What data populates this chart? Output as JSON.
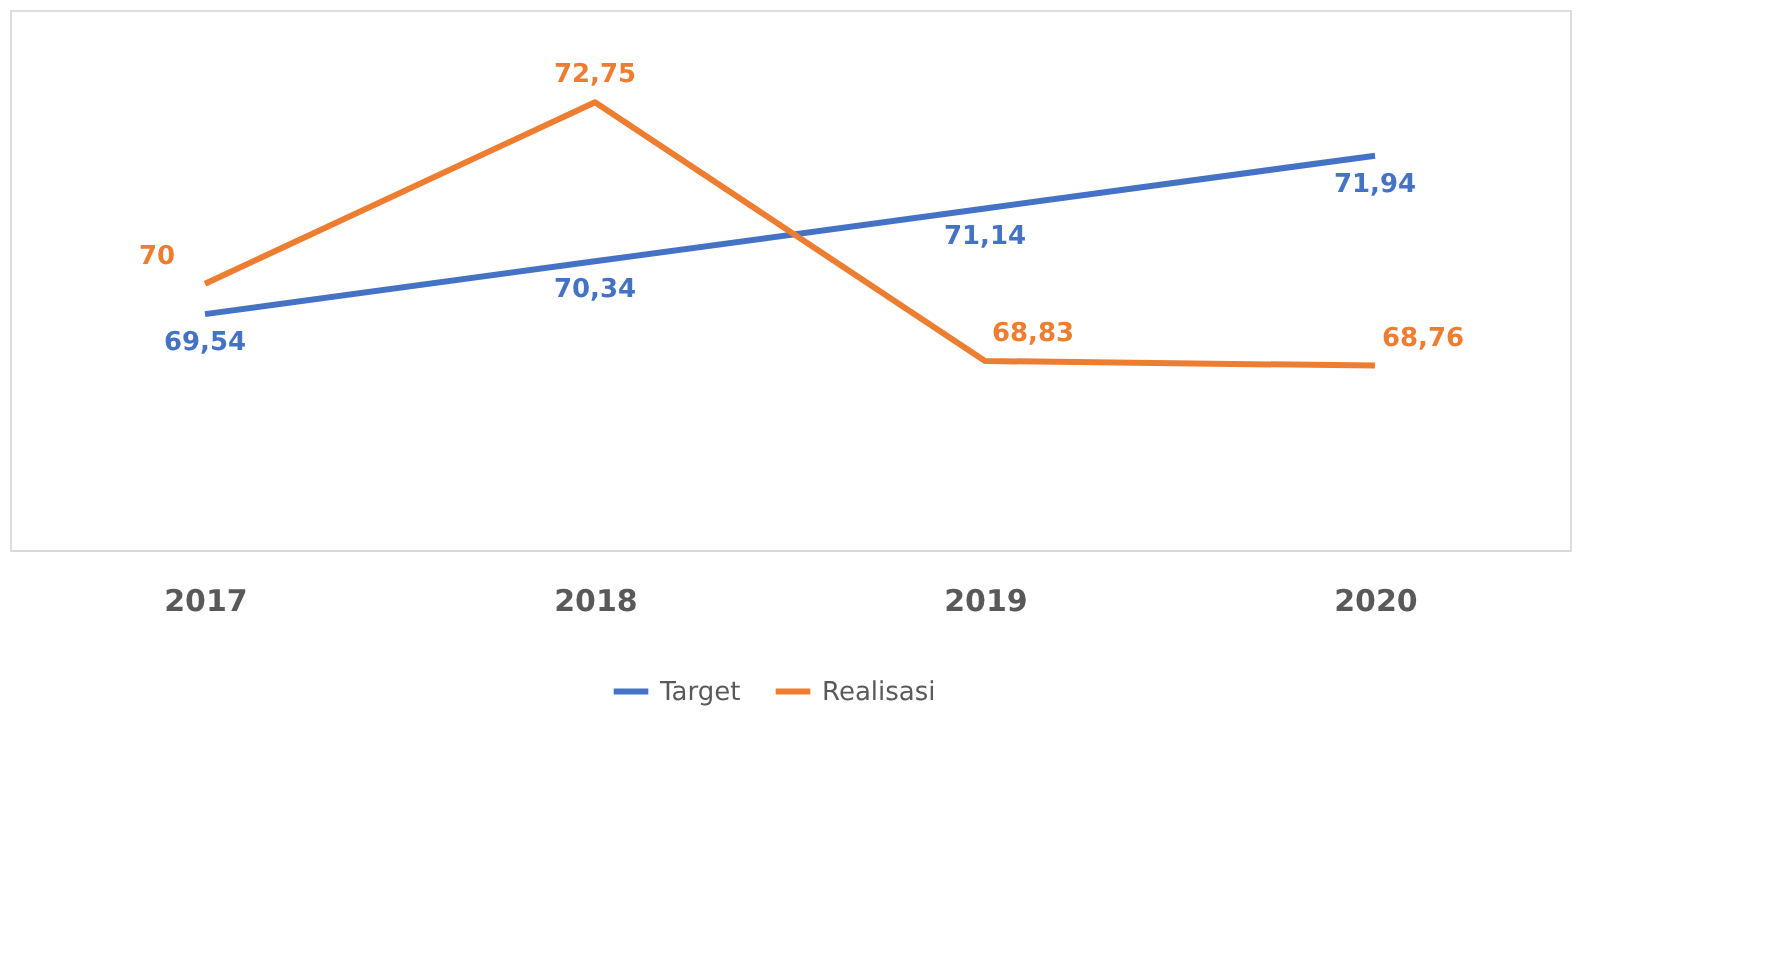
{
  "chart_data": {
    "type": "line",
    "categories": [
      "2017",
      "2018",
      "2019",
      "2020"
    ],
    "series": [
      {
        "name": "Target",
        "color": "#4472c4",
        "values": [
          69.54,
          70.34,
          71.14,
          71.94
        ],
        "value_labels": [
          "69,54",
          "70,34",
          "71,14",
          "71,94"
        ]
      },
      {
        "name": "Realisasi",
        "color": "#ed7d31",
        "values": [
          70,
          72.75,
          68.83,
          68.76
        ],
        "value_labels": [
          "70",
          "72,75",
          "68,83",
          "68,76"
        ]
      }
    ],
    "legend": "bottom",
    "grid": false,
    "marker": "none",
    "line_style": "solid"
  }
}
